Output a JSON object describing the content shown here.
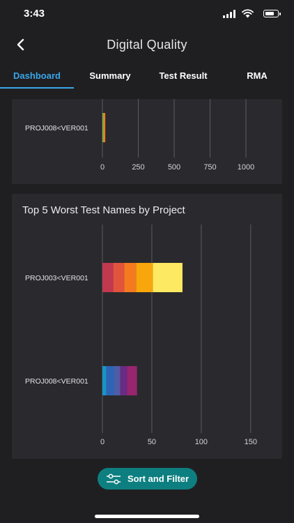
{
  "status_bar": {
    "time": "3:43",
    "icons": [
      "signal-icon",
      "wifi-icon",
      "battery-icon"
    ]
  },
  "header": {
    "title": "Digital Quality",
    "back_icon": "chevron-left-icon"
  },
  "tabs": [
    {
      "label": "Dashboard",
      "active": true
    },
    {
      "label": "Summary",
      "active": false
    },
    {
      "label": "Test Result",
      "active": false
    },
    {
      "label": "RMA",
      "active": false
    }
  ],
  "chart_data": [
    {
      "type": "bar",
      "orientation": "horizontal",
      "stacked": true,
      "title": "",
      "categories": [
        "PROJ008<VER001"
      ],
      "series": [
        {
          "values": [
            8
          ],
          "color": "#7cc141"
        },
        {
          "values": [
            12
          ],
          "color": "#f37a1f"
        }
      ],
      "xlim": [
        0,
        1000
      ],
      "xticks": [
        0,
        250,
        500,
        750,
        1000
      ],
      "grid": true
    },
    {
      "type": "bar",
      "orientation": "horizontal",
      "stacked": true,
      "title": "Top 5 Worst Test Names by Project",
      "categories": [
        "PROJ003<VER001",
        "PROJ008<VER001"
      ],
      "series_groups": [
        {
          "category": "PROJ003<VER001",
          "segments": [
            {
              "value": 11,
              "color": "#c0394f"
            },
            {
              "value": 11,
              "color": "#e2533e"
            },
            {
              "value": 12,
              "color": "#f47a20"
            },
            {
              "value": 17,
              "color": "#f8a60c"
            },
            {
              "value": 30,
              "color": "#fde962"
            }
          ]
        },
        {
          "category": "PROJ008<VER001",
          "segments": [
            {
              "value": 4,
              "color": "#1795c9"
            },
            {
              "value": 8,
              "color": "#2f64b4"
            },
            {
              "value": 6,
              "color": "#4f5ca6"
            },
            {
              "value": 7,
              "color": "#6b2a83"
            },
            {
              "value": 10,
              "color": "#97266f"
            }
          ]
        }
      ],
      "xlim": [
        0,
        160
      ],
      "xticks": [
        0,
        50,
        100,
        150
      ],
      "grid": true
    }
  ],
  "sort_button": {
    "label": "Sort and Filter",
    "icon": "sliders-icon"
  },
  "colors": {
    "background": "#1f1f22",
    "card": "#2a2a2e",
    "accent": "#3aa6e8",
    "button": "#0e7f80"
  }
}
